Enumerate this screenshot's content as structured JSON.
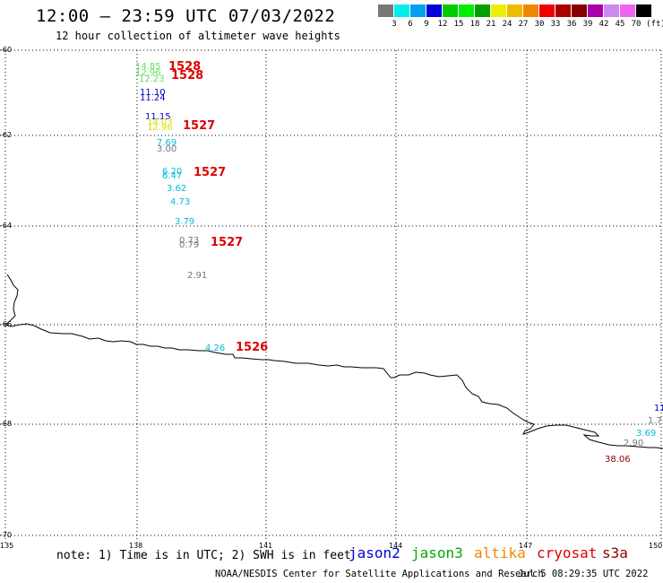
{
  "title": "12:00 – 23:59 UTC 07/03/2022",
  "subtitle": "12 hour collection of altimeter wave heights",
  "legend": {
    "unit_label": "(ft)",
    "bins": [
      {
        "label": "3",
        "color": "#777777"
      },
      {
        "label": "6",
        "color": "#00eeee"
      },
      {
        "label": "9",
        "color": "#00a0ee"
      },
      {
        "label": "12",
        "color": "#0000dd"
      },
      {
        "label": "15",
        "color": "#00cc00"
      },
      {
        "label": "18",
        "color": "#00ee00"
      },
      {
        "label": "21",
        "color": "#00a000"
      },
      {
        "label": "24",
        "color": "#eeee00"
      },
      {
        "label": "27",
        "color": "#eebb00"
      },
      {
        "label": "30",
        "color": "#ee8800"
      },
      {
        "label": "33",
        "color": "#ee0000"
      },
      {
        "label": "36",
        "color": "#aa0000"
      },
      {
        "label": "39",
        "color": "#880000"
      },
      {
        "label": "42",
        "color": "#aa00aa"
      },
      {
        "label": "45",
        "color": "#cc88ee"
      },
      {
        "label": "70",
        "color": "#ee66ee"
      },
      {
        "label": "",
        "color": "#000000"
      }
    ]
  },
  "axes": {
    "lat_labels": [
      "-60",
      "-62",
      "-64",
      "-66",
      "-68",
      "-70"
    ],
    "lon_labels": [
      "135",
      "138",
      "141",
      "144",
      "147",
      "150"
    ]
  },
  "wave_heights": [
    {
      "value": "14.85",
      "color": "#66dd66"
    },
    {
      "value": "12.96",
      "color": "#66dd66"
    },
    {
      "value": "12.23",
      "color": "#66dd66"
    },
    {
      "value": "11.10",
      "color": "#0000cc"
    },
    {
      "value": "11.24",
      "color": "#0000cc"
    },
    {
      "value": "11.15",
      "color": "#0000cc"
    },
    {
      "value": "14.03",
      "color": "#dddd00"
    },
    {
      "value": "12.96",
      "color": "#dddd00"
    },
    {
      "value": "7.69",
      "color": "#00bbdd"
    },
    {
      "value": "3.00",
      "color": "#777777"
    },
    {
      "value": "6.20",
      "color": "#00bbdd"
    },
    {
      "value": "6.47",
      "color": "#00bbdd"
    },
    {
      "value": "3.62",
      "color": "#00bbdd"
    },
    {
      "value": "4.73",
      "color": "#00bbdd"
    },
    {
      "value": "3.79",
      "color": "#00bbdd"
    },
    {
      "value": "0.73",
      "color": "#777777"
    },
    {
      "value": "0.79",
      "color": "#777777"
    },
    {
      "value": "2.91",
      "color": "#777777"
    },
    {
      "value": "4.26",
      "color": "#00bbdd"
    },
    {
      "value": "11",
      "color": "#0000cc"
    },
    {
      "value": "1.7",
      "color": "#777777"
    },
    {
      "value": "3.69",
      "color": "#00bbdd"
    },
    {
      "value": "2.90",
      "color": "#777777"
    },
    {
      "value": "38.06",
      "color": "#880000"
    }
  ],
  "passes": [
    "1528",
    "1528",
    "1527",
    "1527",
    "1527",
    "1526"
  ],
  "footer": {
    "note": "note: 1) Time is in UTC; 2) SWH is in feet",
    "missions": [
      {
        "name": "jason2",
        "color": "#0000dd"
      },
      {
        "name": "jason3",
        "color": "#00aa00"
      },
      {
        "name": "altika",
        "color": "#ee8800"
      },
      {
        "name": "cryosat",
        "color": "#dd0000"
      },
      {
        "name": "s3a",
        "color": "#880000"
      }
    ],
    "credit": "NOAA/NESDIS Center for Satellite Applications and Research",
    "timestamp": "Jul  5 08:29:35 UTC 2022"
  }
}
